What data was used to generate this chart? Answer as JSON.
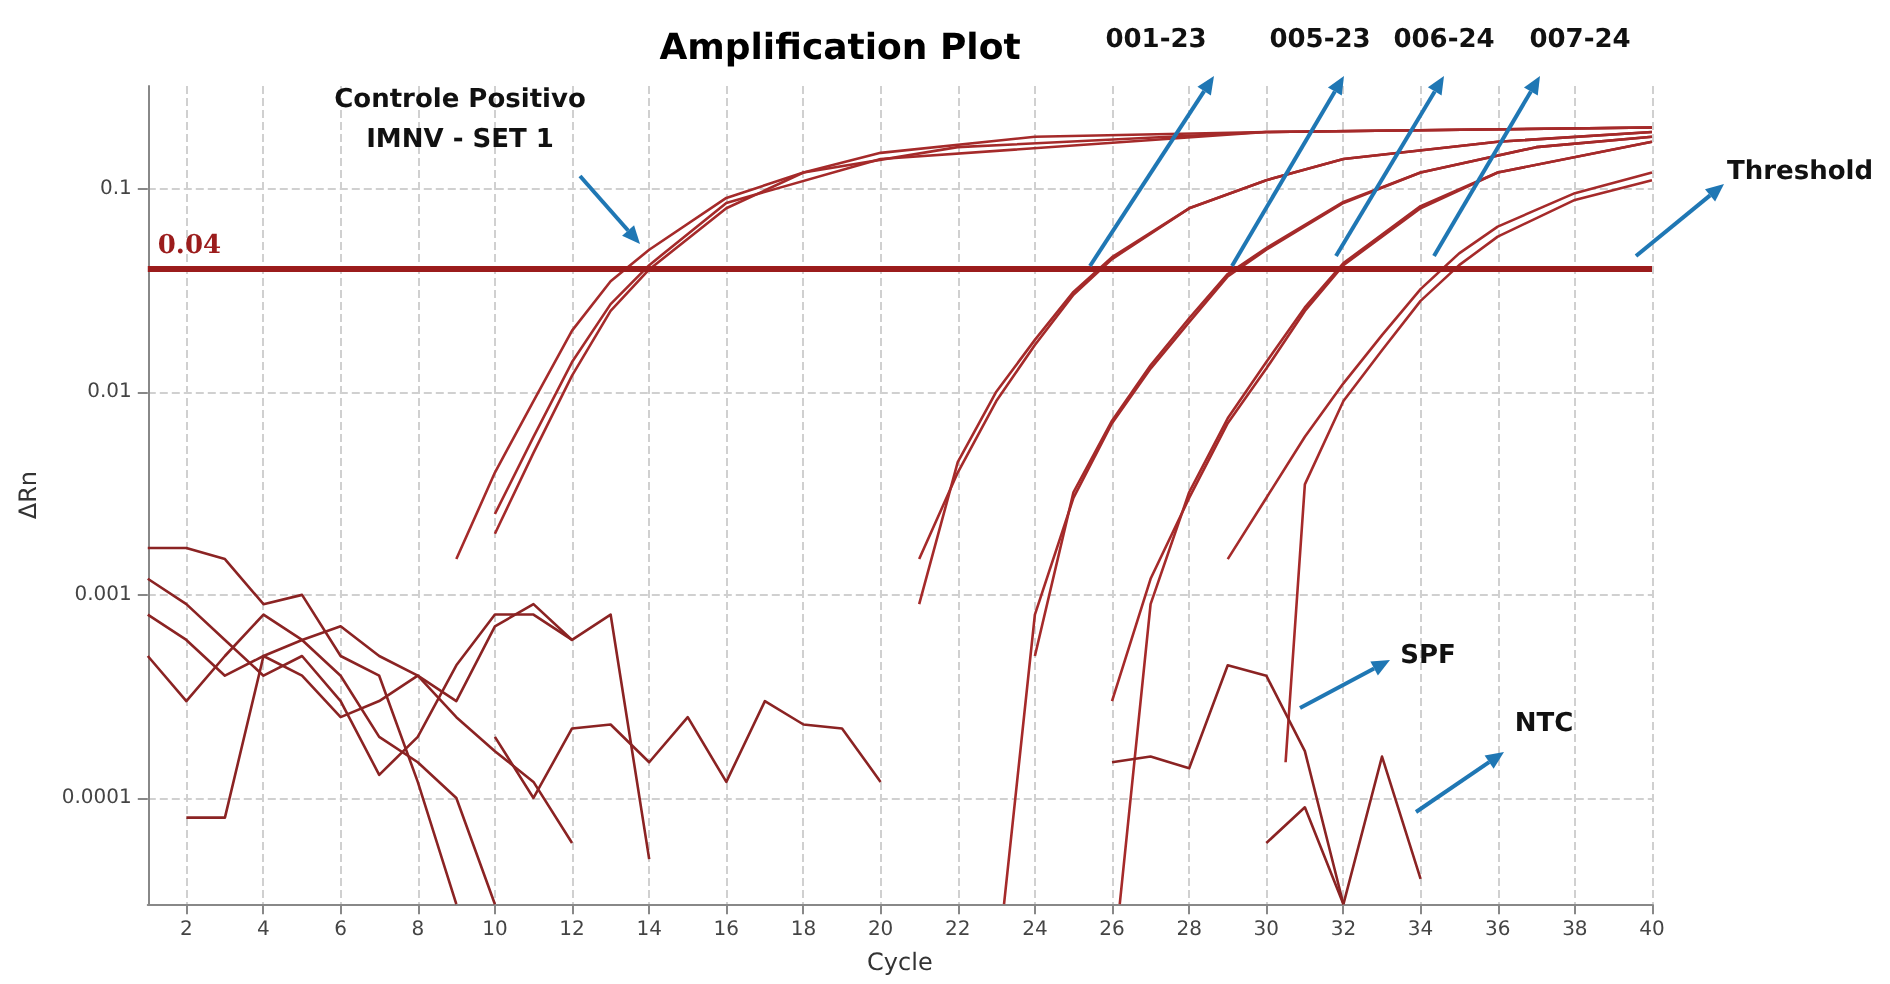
{
  "chart_data": {
    "type": "line",
    "title": "Amplification Plot",
    "xlabel": "Cycle",
    "ylabel": "ΔRn",
    "log": "y",
    "grid": true,
    "marker": "none",
    "line_style": "solid",
    "xlim": [
      1,
      40
    ],
    "xticks": [
      2,
      4,
      6,
      8,
      10,
      12,
      14,
      16,
      18,
      20,
      22,
      24,
      26,
      28,
      30,
      32,
      34,
      36,
      38,
      40
    ],
    "ylim": [
      3e-05,
      0.32
    ],
    "yticks": [
      0.0001,
      0.001,
      0.01,
      0.1
    ],
    "ref_lines": [
      {
        "axis": "y",
        "value": 0.04,
        "label": "0.04",
        "color": "#9b1c1c"
      }
    ],
    "annotations": [
      "Controle Positivo\nIMNV - SET 1",
      "001-23",
      "005-23",
      "006-24",
      "007-24",
      "Threshold",
      "SPF",
      "NTC"
    ],
    "series": [
      {
        "color": "#a52a2a",
        "x": [
          9,
          10,
          11,
          12,
          13,
          14,
          16,
          18,
          20,
          24,
          30,
          40
        ],
        "values": [
          0.0015,
          0.004,
          0.009,
          0.02,
          0.035,
          0.05,
          0.09,
          0.12,
          0.15,
          0.18,
          0.19,
          0.2
        ]
      },
      {
        "color": "#a52a2a",
        "x": [
          10,
          11,
          12,
          13,
          14,
          16,
          18,
          22,
          30,
          40
        ],
        "values": [
          0.002,
          0.005,
          0.012,
          0.025,
          0.04,
          0.08,
          0.12,
          0.16,
          0.19,
          0.2
        ]
      },
      {
        "color": "#a52a2a",
        "x": [
          10,
          11,
          12,
          13,
          14,
          16,
          20,
          30,
          40
        ],
        "values": [
          0.0025,
          0.006,
          0.014,
          0.027,
          0.042,
          0.085,
          0.14,
          0.19,
          0.2
        ]
      },
      {
        "color": "#a52a2a",
        "x": [
          21,
          22,
          23,
          24,
          25,
          26,
          28,
          30,
          32,
          36,
          40
        ],
        "values": [
          0.0015,
          0.004,
          0.009,
          0.017,
          0.03,
          0.045,
          0.08,
          0.11,
          0.14,
          0.17,
          0.19
        ]
      },
      {
        "color": "#a52a2a",
        "x": [
          21,
          22,
          23,
          24,
          25,
          26,
          28,
          30,
          32,
          36,
          40
        ],
        "values": [
          0.0009,
          0.0045,
          0.01,
          0.018,
          0.031,
          0.046,
          0.08,
          0.11,
          0.14,
          0.17,
          0.19
        ]
      },
      {
        "color": "#a52a2a",
        "x": [
          23.2,
          24,
          25,
          26,
          27,
          28,
          29,
          30,
          32,
          34,
          37,
          40
        ],
        "values": [
          3e-05,
          0.0008,
          0.003,
          0.007,
          0.013,
          0.022,
          0.037,
          0.05,
          0.085,
          0.12,
          0.16,
          0.18
        ]
      },
      {
        "color": "#a52a2a",
        "x": [
          24,
          25,
          26,
          27,
          28,
          29,
          30,
          32,
          34,
          37,
          40
        ],
        "values": [
          0.0005,
          0.0032,
          0.0072,
          0.0135,
          0.023,
          0.038,
          0.051,
          0.086,
          0.12,
          0.16,
          0.18
        ]
      },
      {
        "color": "#a52a2a",
        "x": [
          26,
          27,
          28,
          29,
          30,
          31,
          32,
          34,
          36,
          40
        ],
        "values": [
          0.0003,
          0.0012,
          0.003,
          0.007,
          0.013,
          0.025,
          0.042,
          0.08,
          0.12,
          0.17
        ]
      },
      {
        "color": "#a52a2a",
        "x": [
          26.2,
          27,
          28,
          29,
          30,
          31,
          32,
          34,
          36,
          40
        ],
        "values": [
          3e-05,
          0.0009,
          0.0032,
          0.0074,
          0.014,
          0.026,
          0.043,
          0.082,
          0.12,
          0.17
        ]
      },
      {
        "color": "#a52a2a",
        "x": [
          29,
          30,
          31,
          32,
          33,
          34,
          35,
          36,
          38,
          40
        ],
        "values": [
          0.0015,
          0.003,
          0.006,
          0.011,
          0.019,
          0.032,
          0.048,
          0.065,
          0.095,
          0.12
        ]
      },
      {
        "color": "#a52a2a",
        "x": [
          30.5,
          31,
          32,
          33,
          34,
          35,
          36,
          38,
          40
        ],
        "values": [
          0.00015,
          0.0035,
          0.009,
          0.016,
          0.028,
          0.042,
          0.058,
          0.088,
          0.11
        ]
      },
      {
        "color": "#8b2323",
        "x": [
          1,
          2,
          3,
          4,
          5,
          6,
          7,
          8,
          9
        ],
        "values": [
          0.0017,
          0.0017,
          0.0015,
          0.0009,
          0.001,
          0.0005,
          0.0004,
          0.00012,
          3e-05
        ]
      },
      {
        "color": "#8b2323",
        "x": [
          1,
          2,
          3,
          4,
          5,
          6,
          7,
          8,
          9,
          10,
          11,
          12
        ],
        "values": [
          0.0012,
          0.0009,
          0.0006,
          0.0004,
          0.0005,
          0.0003,
          0.00013,
          0.0002,
          0.00045,
          0.0008,
          0.0008,
          0.0006
        ]
      },
      {
        "color": "#8b2323",
        "x": [
          1,
          2,
          3,
          4,
          5,
          6,
          7,
          8,
          9,
          10,
          11,
          12
        ],
        "values": [
          0.0008,
          0.0006,
          0.0004,
          0.0005,
          0.0004,
          0.00025,
          0.0003,
          0.0004,
          0.00025,
          0.00017,
          0.00012,
          6e-05
        ]
      },
      {
        "color": "#8b2323",
        "x": [
          10,
          11,
          12,
          13,
          14,
          15,
          16,
          17,
          18,
          19,
          20
        ],
        "values": [
          0.0002,
          0.0001,
          0.00022,
          0.00023,
          0.00015,
          0.00025,
          0.00012,
          0.0003,
          0.00023,
          0.00022,
          0.00012
        ]
      },
      {
        "color": "#8b2323",
        "x": [
          2,
          3,
          4,
          5,
          6,
          7,
          8,
          9,
          10
        ],
        "values": [
          8e-05,
          8e-05,
          0.0005,
          0.0006,
          0.0004,
          0.0002,
          0.00015,
          0.0001,
          3e-05
        ]
      },
      {
        "color": "#8b2323",
        "x": [
          1,
          2,
          3,
          4,
          5,
          6,
          7,
          8,
          9,
          10,
          11,
          12,
          13,
          14
        ],
        "values": [
          0.0005,
          0.0003,
          0.0005,
          0.0008,
          0.0006,
          0.0007,
          0.0005,
          0.0004,
          0.0003,
          0.0007,
          0.0009,
          0.0006,
          0.0008,
          5e-05
        ]
      },
      {
        "color": "#8b2323",
        "x": [
          26,
          27,
          28,
          29,
          30,
          31,
          32
        ],
        "values": [
          0.00015,
          0.00016,
          0.00014,
          0.00045,
          0.0004,
          0.00017,
          3e-05
        ]
      },
      {
        "color": "#8b2323",
        "x": [
          30,
          31,
          32
        ],
        "values": [
          6e-05,
          9e-05,
          3e-05
        ]
      },
      {
        "color": "#8b2323",
        "x": [
          32,
          33,
          34
        ],
        "values": [
          3e-05,
          0.00016,
          4e-05
        ]
      }
    ]
  }
}
